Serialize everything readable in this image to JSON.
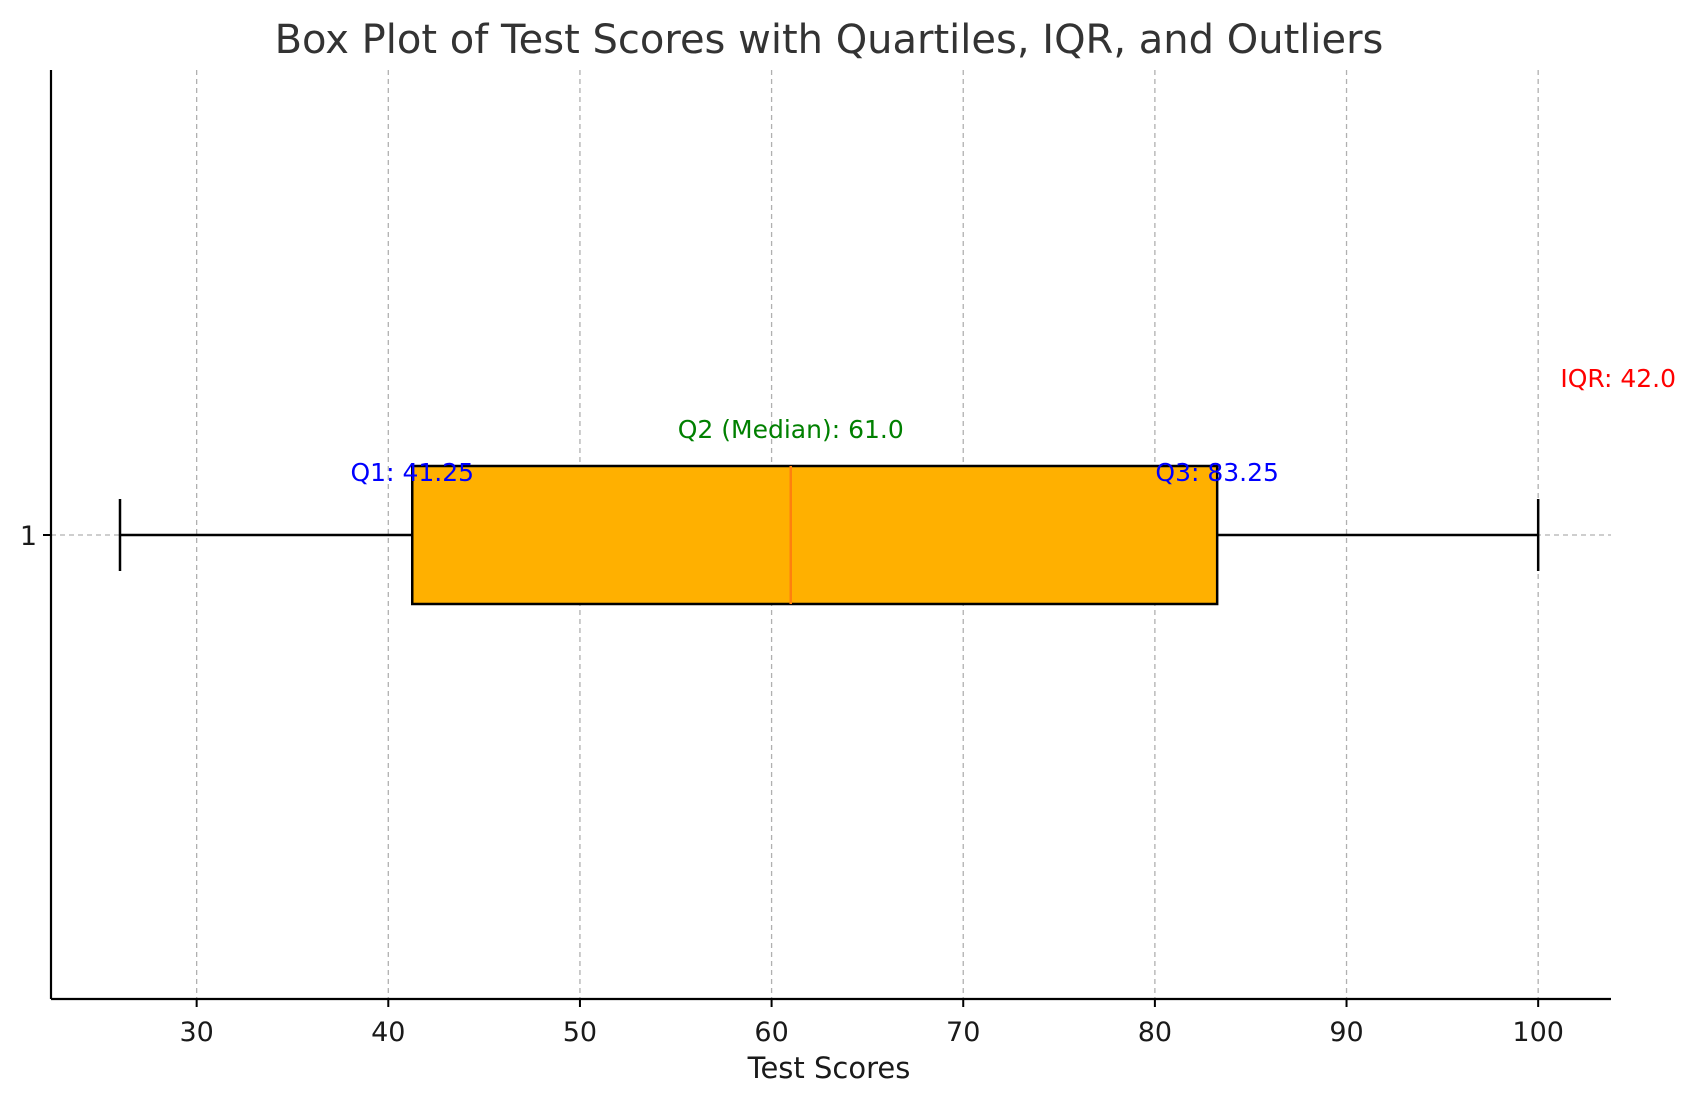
{
  "chart_data": {
    "type": "box",
    "title": "Box Plot of Test Scores with Quartiles, IQR, and Outliers",
    "xlabel": "Test Scores",
    "ylabel": "",
    "orientation": "horizontal",
    "xlim": [
      22.4,
      103.8
    ],
    "x_ticks": [
      30,
      40,
      50,
      60,
      70,
      80,
      90,
      100
    ],
    "y_ticks": [
      "1"
    ],
    "grid": true,
    "box": {
      "category": "1",
      "whisker_low": 26,
      "q1": 41.25,
      "median": 61.0,
      "q3": 83.25,
      "whisker_high": 100,
      "outliers": []
    },
    "annotations": [
      {
        "id": "q1",
        "text": "Q1: 41.25",
        "x": 41.25,
        "color": "#0000ff"
      },
      {
        "id": "q2",
        "text": "Q2 (Median): 61.0",
        "x": 61.0,
        "color": "#008000"
      },
      {
        "id": "q3",
        "text": "Q3: 83.25",
        "x": 83.25,
        "color": "#0000ff"
      },
      {
        "id": "iqr",
        "text": "IQR: 42.0",
        "x": 100,
        "color": "#ff0000"
      }
    ],
    "colors": {
      "box_fill": "#ffb000",
      "box_edge": "#000000",
      "median_line": "#ff7f0e",
      "whisker": "#000000",
      "grid": "#b0b0b0"
    }
  }
}
